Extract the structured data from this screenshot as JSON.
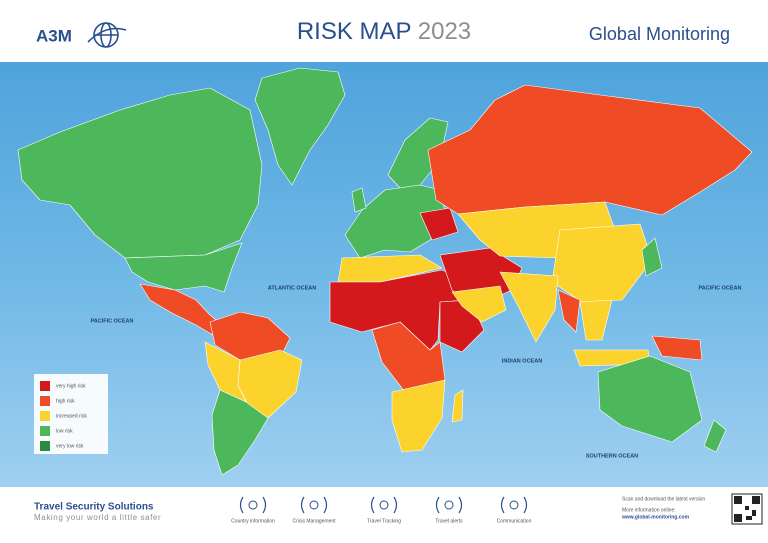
{
  "header": {
    "logo": "A3M",
    "title": "RISK MAP",
    "year": "2023",
    "brand": "Global Monitoring"
  },
  "map": {
    "ocean_labels": [
      "ATLANTIC OCEAN",
      "PACIFIC OCEAN",
      "PACIFIC OCEAN",
      "INDIAN OCEAN",
      "SOUTHERN OCEAN"
    ]
  },
  "legend": [
    {
      "label": "very high risk",
      "color": "#d4191d"
    },
    {
      "label": "high risk",
      "color": "#ef4b24"
    },
    {
      "label": "increased risk",
      "color": "#fcd22c"
    },
    {
      "label": "low risk",
      "color": "#4db85b"
    },
    {
      "label": "very low risk",
      "color": "#2a8a3e"
    }
  ],
  "footer": {
    "tagline": "Travel Security Solutions",
    "slogan": "Making your world a little safer",
    "services": [
      "Country information",
      "Crisis Management",
      "Travel Tracking",
      "Travel alerts",
      "Communication"
    ],
    "qr_text": [
      "Scan and download the latest version",
      "More information online:",
      "www.global-monitoring.com"
    ]
  }
}
